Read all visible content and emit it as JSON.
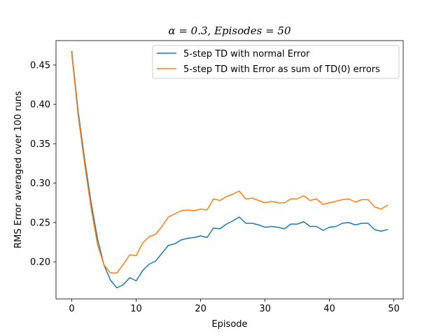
{
  "chart_data": {
    "type": "line",
    "title": "α = 0.3, Episodes = 50",
    "xlabel": "Episode",
    "ylabel": "RMS Error averaged over 100 runs",
    "xlim": [
      -2.45,
      51.45
    ],
    "ylim": [
      0.153,
      0.481
    ],
    "xticks": [
      0,
      10,
      20,
      30,
      40,
      50
    ],
    "yticks": [
      0.2,
      0.25,
      0.3,
      0.35,
      0.4,
      0.45
    ],
    "xtick_labels": [
      "0",
      "10",
      "20",
      "30",
      "40",
      "50"
    ],
    "ytick_labels": [
      "0.20",
      "0.25",
      "0.30",
      "0.35",
      "0.40",
      "0.45"
    ],
    "grid": false,
    "legend_position": "top-right",
    "x": [
      0,
      1,
      2,
      3,
      4,
      5,
      6,
      7,
      8,
      9,
      10,
      11,
      12,
      13,
      14,
      15,
      16,
      17,
      18,
      19,
      20,
      21,
      22,
      23,
      24,
      25,
      26,
      27,
      28,
      29,
      30,
      31,
      32,
      33,
      34,
      35,
      36,
      37,
      38,
      39,
      40,
      41,
      42,
      43,
      44,
      45,
      46,
      47,
      48,
      49
    ],
    "series": [
      {
        "name": "5-step TD with normal Error",
        "color": "#1f77b4",
        "values": [
          0.467,
          0.39,
          0.33,
          0.275,
          0.229,
          0.196,
          0.177,
          0.167,
          0.171,
          0.18,
          0.176,
          0.189,
          0.197,
          0.201,
          0.211,
          0.221,
          0.223,
          0.228,
          0.23,
          0.231,
          0.233,
          0.231,
          0.243,
          0.242,
          0.248,
          0.252,
          0.257,
          0.249,
          0.249,
          0.247,
          0.244,
          0.245,
          0.244,
          0.242,
          0.248,
          0.248,
          0.251,
          0.245,
          0.245,
          0.24,
          0.244,
          0.245,
          0.249,
          0.25,
          0.247,
          0.249,
          0.249,
          0.241,
          0.239,
          0.241
        ]
      },
      {
        "name": "5-step TD with Error as sum of TD(0) errors",
        "color": "#ff7f0e",
        "values": [
          0.464,
          0.385,
          0.324,
          0.268,
          0.222,
          0.196,
          0.186,
          0.186,
          0.197,
          0.209,
          0.208,
          0.224,
          0.232,
          0.235,
          0.245,
          0.257,
          0.261,
          0.265,
          0.266,
          0.265,
          0.267,
          0.266,
          0.28,
          0.278,
          0.283,
          0.286,
          0.29,
          0.28,
          0.281,
          0.278,
          0.275,
          0.277,
          0.275,
          0.275,
          0.28,
          0.28,
          0.284,
          0.278,
          0.28,
          0.273,
          0.275,
          0.277,
          0.279,
          0.28,
          0.276,
          0.279,
          0.279,
          0.27,
          0.267,
          0.272
        ]
      }
    ]
  }
}
